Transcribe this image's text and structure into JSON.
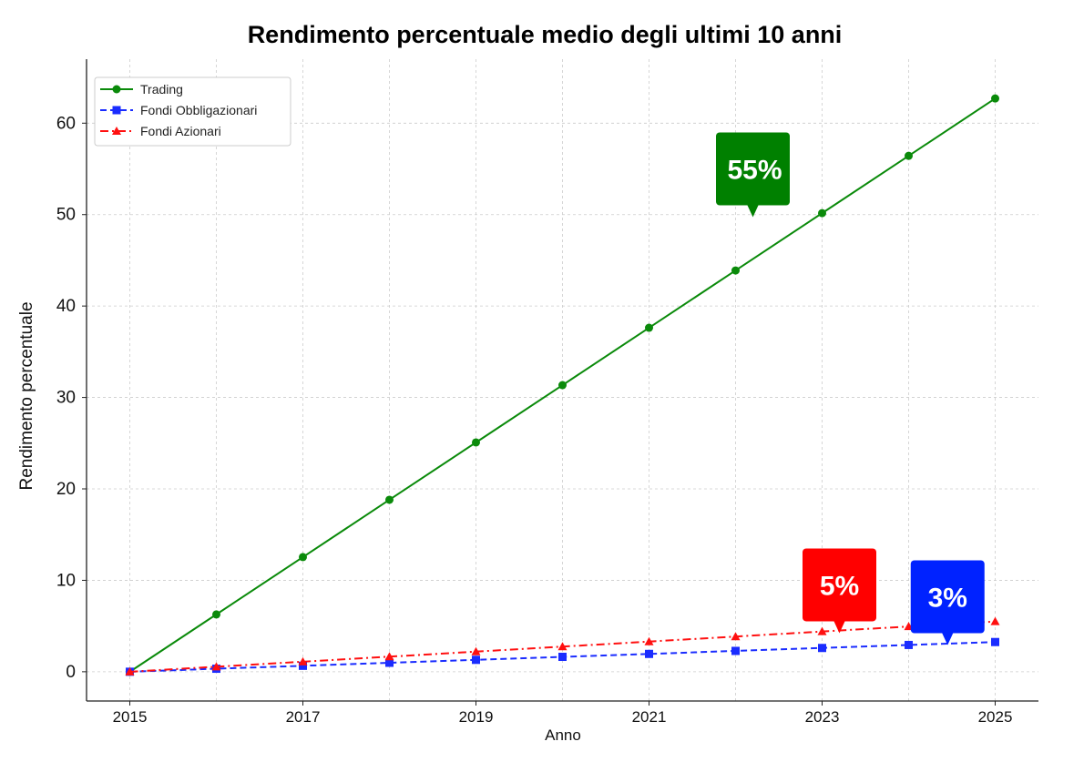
{
  "chart_data": {
    "type": "line",
    "title": "Rendimento percentuale medio degli ultimi 10 anni",
    "xlabel": "Anno",
    "ylabel": "Rendimento percentuale",
    "x": [
      2015,
      2016,
      2017,
      2018,
      2019,
      2020,
      2021,
      2022,
      2023,
      2024,
      2025
    ],
    "xticks": [
      "2015",
      "2017",
      "2019",
      "2021",
      "2023",
      "2025"
    ],
    "yticks": [
      "0",
      "10",
      "20",
      "30",
      "40",
      "50",
      "60"
    ],
    "xlim": [
      2014.5,
      2025.5
    ],
    "ylim": [
      -3.2,
      67
    ],
    "grid": true,
    "legend_position": "top-left",
    "series": [
      {
        "name": "Trading",
        "color": "#0a8a0a",
        "marker": "circle",
        "style": "solid",
        "values": [
          0,
          6.27,
          12.54,
          18.81,
          25.08,
          31.35,
          37.62,
          43.89,
          50.16,
          56.43,
          62.7
        ]
      },
      {
        "name": "Fondi Obbligazionari",
        "color": "#1a2cff",
        "marker": "square",
        "style": "dashed",
        "values": [
          0,
          0.33,
          0.65,
          0.98,
          1.3,
          1.63,
          1.95,
          2.28,
          2.6,
          2.93,
          3.25
        ]
      },
      {
        "name": "Fondi Azionari",
        "color": "#ff1010",
        "marker": "triangle",
        "style": "dashdot",
        "values": [
          0,
          0.55,
          1.1,
          1.65,
          2.2,
          2.75,
          3.3,
          3.85,
          4.4,
          4.95,
          5.5
        ]
      }
    ],
    "annotations": [
      {
        "text": "55%",
        "color": "#008000",
        "x": 2022.2,
        "y": 55
      },
      {
        "text": "5%",
        "color": "#ff0000",
        "x": 2023.2,
        "y": 9.5
      },
      {
        "text": "3%",
        "color": "#0022ff",
        "x": 2024.45,
        "y": 8.2
      }
    ]
  }
}
